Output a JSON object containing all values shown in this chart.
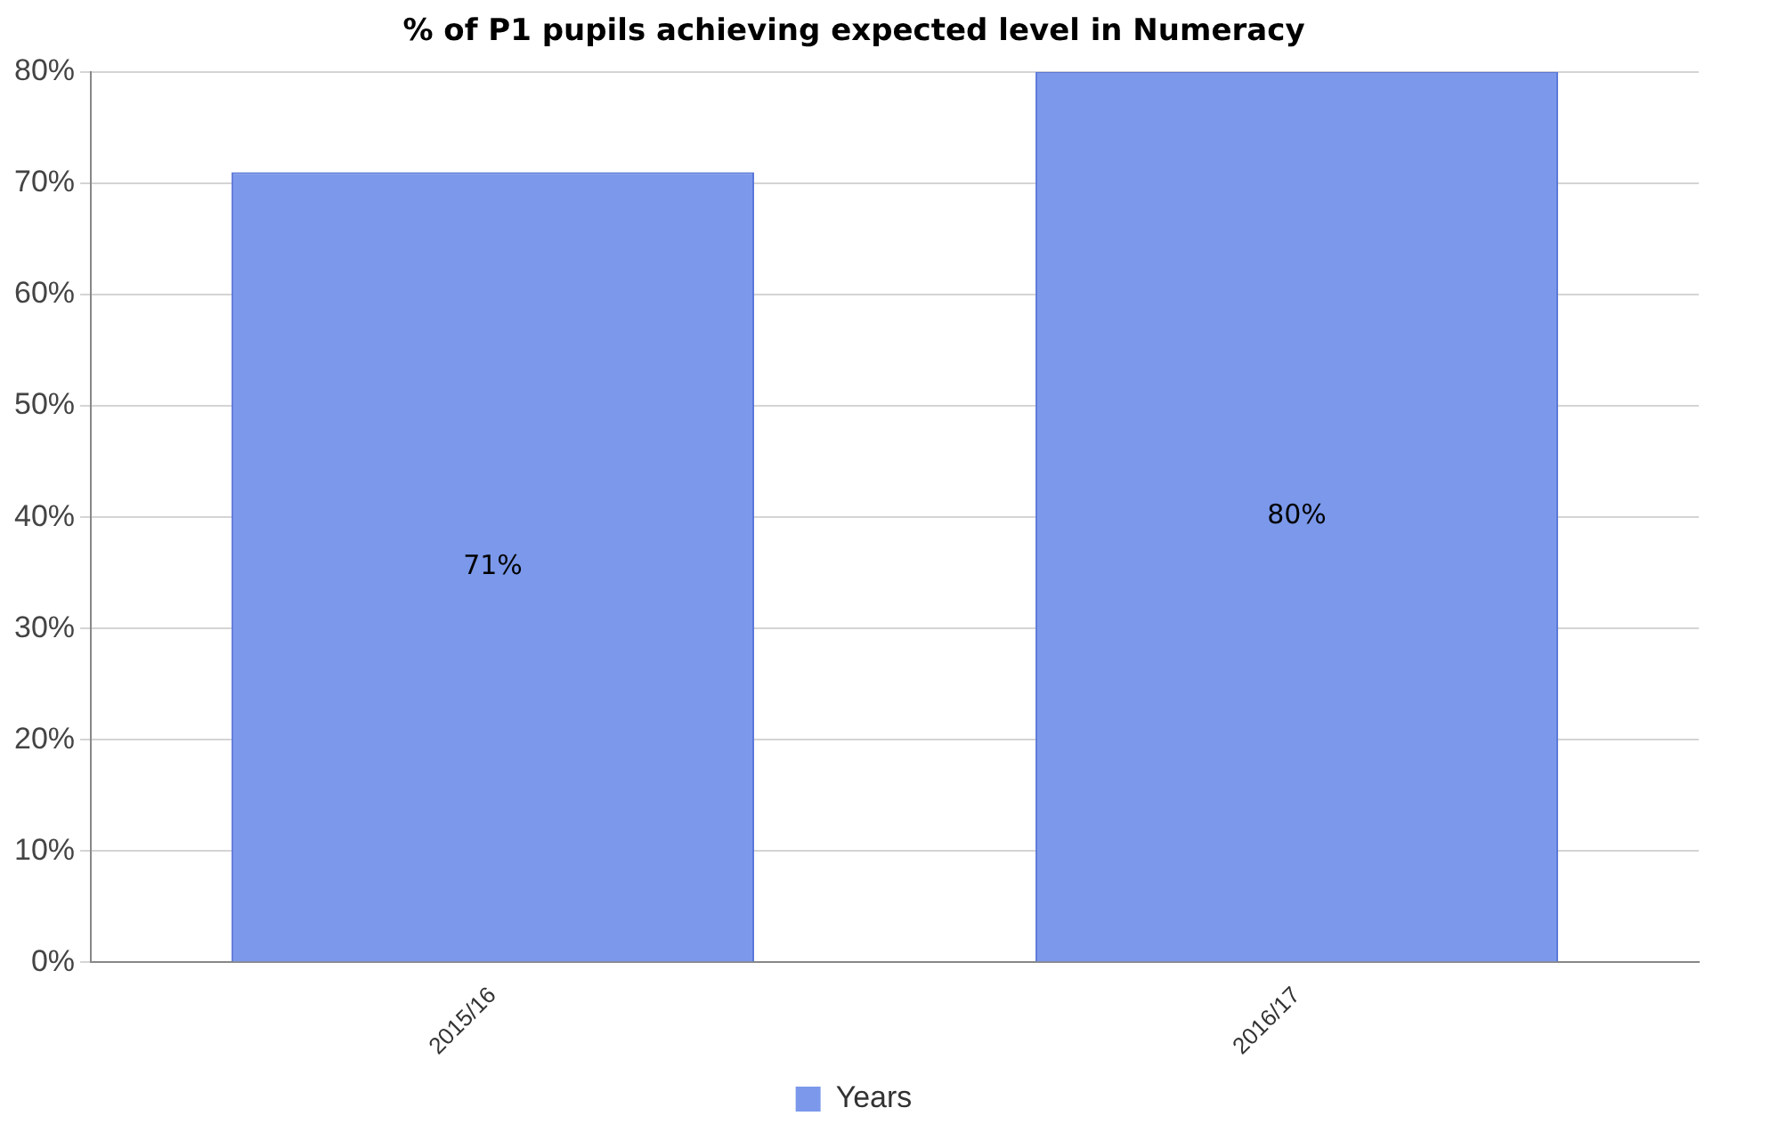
{
  "chart_data": {
    "type": "bar",
    "title": "% of P1 pupils achieving expected level in Numeracy",
    "categories": [
      "2015/16",
      "2016/17"
    ],
    "series": [
      {
        "name": "Years",
        "color": "#7b98ea",
        "values": [
          71,
          80
        ],
        "value_labels": [
          "71%",
          "80%"
        ]
      }
    ],
    "ylim": [
      0,
      80
    ],
    "yticks": [
      {
        "value": 0,
        "label": "0%"
      },
      {
        "value": 10,
        "label": "10%"
      },
      {
        "value": 20,
        "label": "20%"
      },
      {
        "value": 30,
        "label": "30%"
      },
      {
        "value": 40,
        "label": "40%"
      },
      {
        "value": 50,
        "label": "50%"
      },
      {
        "value": 60,
        "label": "60%"
      },
      {
        "value": 70,
        "label": "70%"
      },
      {
        "value": 80,
        "label": "80%"
      }
    ],
    "grid": "y",
    "legend": "bottom"
  }
}
